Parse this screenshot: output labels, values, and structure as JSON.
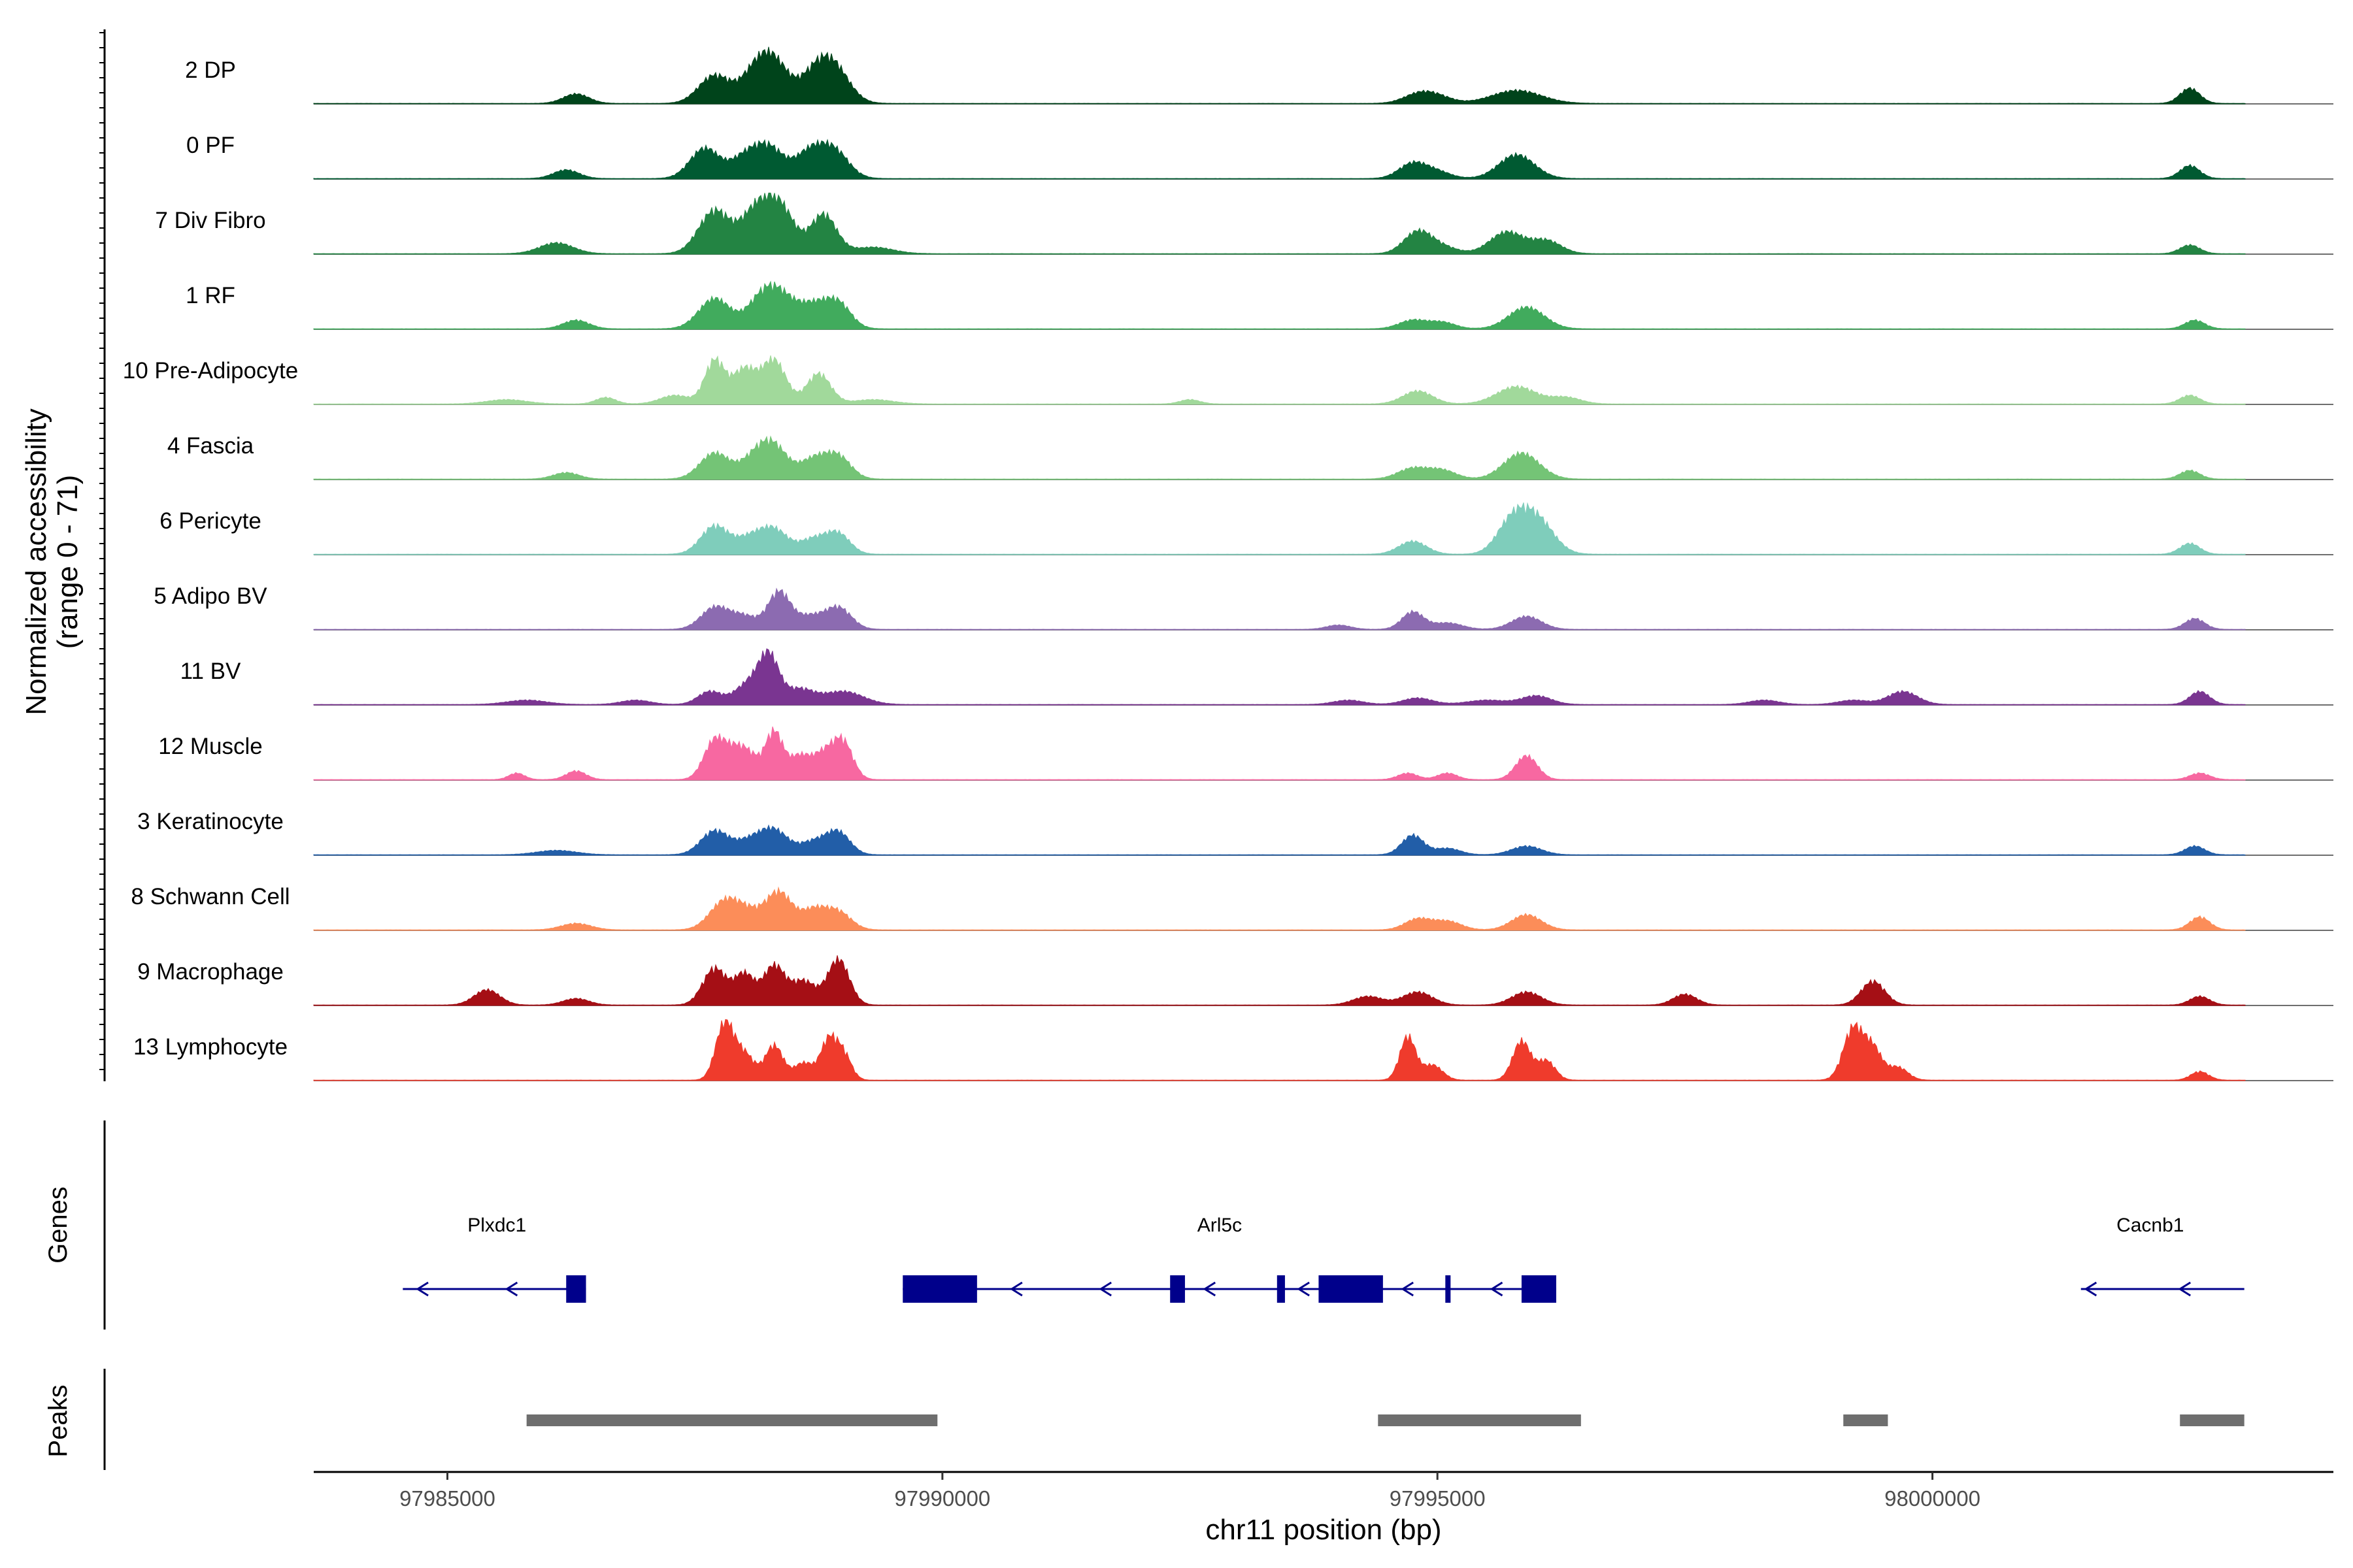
{
  "chart_data": {
    "type": "area",
    "title": "",
    "xlabel": "chr11 position (bp)",
    "ylabel": "Normalized accessibility",
    "ylabel_range": "(range 0 - 71)",
    "xlim": [
      97983650,
      98004050
    ],
    "ylim": [
      0,
      71
    ],
    "x_ticks": [
      97985000,
      97990000,
      97995000,
      98000000
    ],
    "x_tick_labels": [
      "97985000",
      "97990000",
      "97995000",
      "98000000"
    ],
    "panel_labels": {
      "genes": "Genes",
      "peaks": "Peaks"
    },
    "series": [
      {
        "name": "2 DP",
        "color": "#00441b",
        "peaks": [
          [
            97986300,
            0.22,
            130
          ],
          [
            97987700,
            0.65,
            160
          ],
          [
            97988100,
            0.6,
            140
          ],
          [
            97988300,
            0.9,
            150
          ],
          [
            97988700,
            0.55,
            150
          ],
          [
            97988900,
            0.8,
            160
          ],
          [
            97994800,
            0.2,
            150
          ],
          [
            97995000,
            0.15,
            150
          ],
          [
            97995800,
            0.3,
            250
          ],
          [
            98002600,
            0.35,
            100
          ]
        ]
      },
      {
        "name": "0 PF",
        "color": "#005a32",
        "peaks": [
          [
            97986200,
            0.2,
            130
          ],
          [
            97987600,
            0.7,
            150
          ],
          [
            97988000,
            0.45,
            140
          ],
          [
            97988250,
            0.7,
            150
          ],
          [
            97988650,
            0.55,
            140
          ],
          [
            97988900,
            0.65,
            150
          ],
          [
            97994750,
            0.35,
            140
          ],
          [
            97995000,
            0.15,
            140
          ],
          [
            97995800,
            0.55,
            180
          ],
          [
            98002600,
            0.3,
            100
          ]
        ]
      },
      {
        "name": "7 Div Fibro",
        "color": "#238443",
        "peaks": [
          [
            97986100,
            0.25,
            170
          ],
          [
            97987700,
            1.0,
            160
          ],
          [
            97988100,
            0.85,
            140
          ],
          [
            97988350,
            1.1,
            150
          ],
          [
            97988800,
            0.9,
            130
          ],
          [
            97989300,
            0.15,
            200
          ],
          [
            97994800,
            0.5,
            140
          ],
          [
            97995050,
            0.15,
            150
          ],
          [
            97995700,
            0.5,
            170
          ],
          [
            97996100,
            0.3,
            150
          ],
          [
            98002600,
            0.2,
            100
          ]
        ]
      },
      {
        "name": "1 RF",
        "color": "#41ab5d",
        "peaks": [
          [
            97986300,
            0.2,
            130
          ],
          [
            97987700,
            0.7,
            160
          ],
          [
            97988150,
            0.5,
            140
          ],
          [
            97988350,
            0.75,
            160
          ],
          [
            97988700,
            0.5,
            150
          ],
          [
            97988950,
            0.55,
            130
          ],
          [
            97994750,
            0.2,
            140
          ],
          [
            97995050,
            0.15,
            130
          ],
          [
            97995900,
            0.5,
            180
          ],
          [
            98002650,
            0.2,
            100
          ]
        ]
      },
      {
        "name": "10 Pre-Adipocyte",
        "color": "#a1d99b",
        "peaks": [
          [
            97985600,
            0.1,
            200
          ],
          [
            97986600,
            0.15,
            100
          ],
          [
            97987300,
            0.2,
            150
          ],
          [
            97987700,
            1.0,
            100
          ],
          [
            97988000,
            0.8,
            120
          ],
          [
            97988300,
            1.0,
            120
          ],
          [
            97988750,
            0.7,
            120
          ],
          [
            97989300,
            0.1,
            200
          ],
          [
            97992500,
            0.1,
            100
          ],
          [
            97994800,
            0.3,
            150
          ],
          [
            97995800,
            0.4,
            200
          ],
          [
            97996300,
            0.15,
            150
          ],
          [
            98002600,
            0.2,
            100
          ]
        ]
      },
      {
        "name": "4 Fascia",
        "color": "#74c476",
        "peaks": [
          [
            97986200,
            0.15,
            130
          ],
          [
            97987700,
            0.6,
            150
          ],
          [
            97988100,
            0.45,
            140
          ],
          [
            97988300,
            0.7,
            140
          ],
          [
            97988700,
            0.45,
            140
          ],
          [
            97988950,
            0.5,
            130
          ],
          [
            97994750,
            0.25,
            150
          ],
          [
            97995050,
            0.2,
            140
          ],
          [
            97995850,
            0.6,
            180
          ],
          [
            98002600,
            0.2,
            100
          ]
        ]
      },
      {
        "name": "6 Pericyte",
        "color": "#7fcdbb",
        "peaks": [
          [
            97987700,
            0.65,
            140
          ],
          [
            97988050,
            0.35,
            140
          ],
          [
            97988300,
            0.55,
            140
          ],
          [
            97988700,
            0.35,
            140
          ],
          [
            97988950,
            0.45,
            120
          ],
          [
            97994750,
            0.3,
            140
          ],
          [
            97995750,
            0.7,
            150
          ],
          [
            97996000,
            0.8,
            170
          ],
          [
            98002600,
            0.25,
            100
          ]
        ]
      },
      {
        "name": "5 Adipo BV",
        "color": "#8c6bb1",
        "peaks": [
          [
            97987700,
            0.5,
            140
          ],
          [
            97988000,
            0.3,
            140
          ],
          [
            97988350,
            0.85,
            110
          ],
          [
            97988650,
            0.3,
            140
          ],
          [
            97988950,
            0.5,
            130
          ],
          [
            97994000,
            0.1,
            120
          ],
          [
            97994750,
            0.4,
            110
          ],
          [
            97995100,
            0.15,
            150
          ],
          [
            97995900,
            0.3,
            150
          ],
          [
            98002650,
            0.25,
            100
          ]
        ]
      },
      {
        "name": "11 BV",
        "color": "#7a3591",
        "peaks": [
          [
            97985800,
            0.1,
            200
          ],
          [
            97986900,
            0.1,
            150
          ],
          [
            97987650,
            0.3,
            120
          ],
          [
            97988050,
            0.5,
            140
          ],
          [
            97988250,
            1.0,
            100
          ],
          [
            97988550,
            0.35,
            150
          ],
          [
            97989000,
            0.3,
            200
          ],
          [
            97994100,
            0.1,
            150
          ],
          [
            97994800,
            0.15,
            150
          ],
          [
            97995500,
            0.1,
            200
          ],
          [
            97996000,
            0.2,
            150
          ],
          [
            97998300,
            0.1,
            150
          ],
          [
            97999200,
            0.1,
            150
          ],
          [
            97999700,
            0.3,
            150
          ],
          [
            98002700,
            0.3,
            100
          ]
        ]
      },
      {
        "name": "12 Muscle",
        "color": "#f768a1",
        "peaks": [
          [
            97985700,
            0.15,
            80
          ],
          [
            97986300,
            0.2,
            100
          ],
          [
            97987700,
            0.9,
            110
          ],
          [
            97987900,
            0.5,
            100
          ],
          [
            97988050,
            0.5,
            100
          ],
          [
            97988300,
            1.1,
            90
          ],
          [
            97988550,
            0.5,
            100
          ],
          [
            97988800,
            0.6,
            120
          ],
          [
            97989000,
            0.8,
            100
          ],
          [
            97994700,
            0.15,
            100
          ],
          [
            97995100,
            0.15,
            100
          ],
          [
            97995900,
            0.55,
            110
          ],
          [
            98002700,
            0.15,
            100
          ]
        ]
      },
      {
        "name": "3 Keratinocyte",
        "color": "#225ea8",
        "peaks": [
          [
            97986100,
            0.1,
            200
          ],
          [
            97987700,
            0.55,
            140
          ],
          [
            97988050,
            0.3,
            140
          ],
          [
            97988300,
            0.55,
            140
          ],
          [
            97988700,
            0.3,
            140
          ],
          [
            97988950,
            0.5,
            120
          ],
          [
            97994750,
            0.45,
            110
          ],
          [
            97995100,
            0.15,
            130
          ],
          [
            97995900,
            0.2,
            150
          ],
          [
            98002650,
            0.2,
            100
          ]
        ]
      },
      {
        "name": "8 Schwann Cell",
        "color": "#fc8d59",
        "peaks": [
          [
            97986300,
            0.15,
            150
          ],
          [
            97987800,
            0.65,
            150
          ],
          [
            97988050,
            0.35,
            140
          ],
          [
            97988350,
            0.85,
            130
          ],
          [
            97988700,
            0.45,
            130
          ],
          [
            97988950,
            0.4,
            130
          ],
          [
            97994800,
            0.25,
            130
          ],
          [
            97995100,
            0.2,
            140
          ],
          [
            97995900,
            0.35,
            150
          ],
          [
            98002700,
            0.3,
            100
          ]
        ]
      },
      {
        "name": "9 Macrophage",
        "color": "#a50f15",
        "peaks": [
          [
            97985400,
            0.35,
            130
          ],
          [
            97986300,
            0.15,
            130
          ],
          [
            97987700,
            0.85,
            120
          ],
          [
            97988000,
            0.7,
            100
          ],
          [
            97988300,
            0.9,
            110
          ],
          [
            97988600,
            0.55,
            120
          ],
          [
            97988950,
            1.05,
            110
          ],
          [
            97994300,
            0.2,
            150
          ],
          [
            97994800,
            0.3,
            150
          ],
          [
            97995900,
            0.3,
            150
          ],
          [
            97997500,
            0.25,
            120
          ],
          [
            97999400,
            0.55,
            120
          ],
          [
            98002700,
            0.2,
            100
          ]
        ]
      },
      {
        "name": "13 Lymphocyte",
        "color": "#ef3b2c",
        "peaks": [
          [
            97987800,
            1.3,
            90
          ],
          [
            97988000,
            0.6,
            100
          ],
          [
            97988300,
            0.8,
            90
          ],
          [
            97988600,
            0.4,
            100
          ],
          [
            97988850,
            0.9,
            80
          ],
          [
            97989000,
            0.6,
            80
          ],
          [
            97994700,
            1.0,
            80
          ],
          [
            97994950,
            0.35,
            100
          ],
          [
            97995850,
            0.9,
            90
          ],
          [
            97996100,
            0.45,
            90
          ],
          [
            97999200,
            1.2,
            100
          ],
          [
            97999400,
            0.7,
            90
          ],
          [
            97999650,
            0.3,
            100
          ],
          [
            98002700,
            0.2,
            90
          ]
        ]
      }
    ],
    "genes": [
      {
        "name": "Plxdc1",
        "label_x": 97985500,
        "line": [
          97984550,
          97986400
        ],
        "exons": [
          [
            97986200,
            97986400
          ]
        ],
        "arrows": [
          97984700,
          97985600
        ]
      },
      {
        "name": "Arl5c",
        "label_x": 97992800,
        "line": [
          97989600,
          97996200
        ],
        "exons": [
          [
            97989600,
            97990350
          ],
          [
            97992300,
            97992450
          ],
          [
            97993380,
            97993460
          ],
          [
            97993800,
            97994450
          ],
          [
            97995080,
            97995130
          ],
          [
            97995850,
            97996200
          ]
        ],
        "arrows": [
          97990700,
          97991600,
          97992650,
          97993600,
          97994650,
          97995550
        ]
      },
      {
        "name": "Cacnb1",
        "label_x": 98002200,
        "line": [
          98001500,
          98003150
        ],
        "exons": [],
        "arrows": [
          98001550,
          98002500
        ]
      }
    ],
    "peaks_track": [
      [
        97985800,
        97989950
      ],
      [
        97994400,
        97996450
      ],
      [
        97999100,
        97999550
      ],
      [
        98002500,
        98003150
      ]
    ]
  }
}
